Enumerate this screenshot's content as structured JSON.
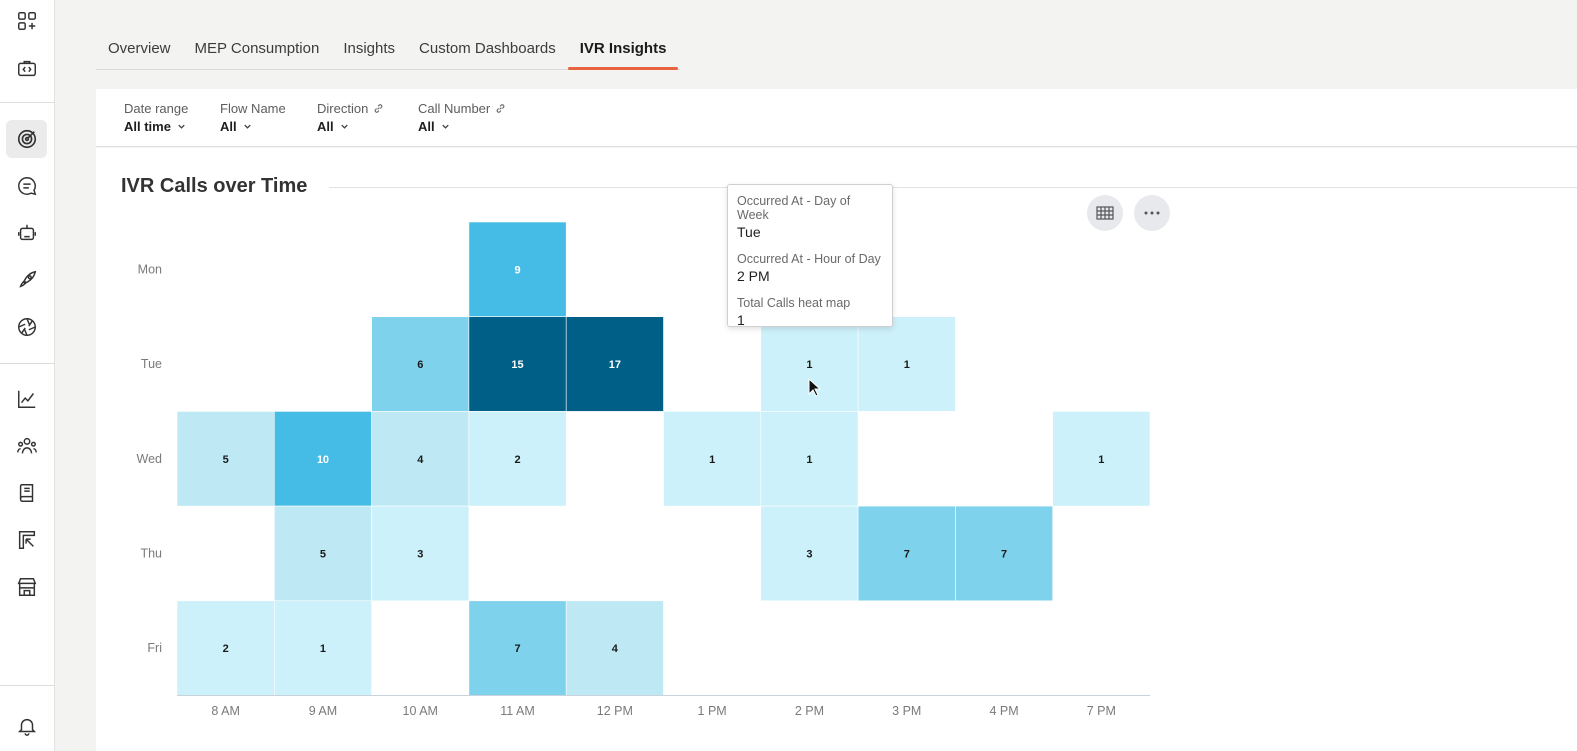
{
  "tabs": [
    {
      "label": "Overview"
    },
    {
      "label": "MEP Consumption"
    },
    {
      "label": "Insights"
    },
    {
      "label": "Custom Dashboards"
    },
    {
      "label": "IVR Insights",
      "active": true
    }
  ],
  "filters": [
    {
      "label": "Date range",
      "value": "All time",
      "linked": false
    },
    {
      "label": "Flow Name",
      "value": "All",
      "linked": false
    },
    {
      "label": "Direction",
      "value": "All",
      "linked": true
    },
    {
      "label": "Call Number",
      "value": "All",
      "linked": true
    }
  ],
  "rail_icons": [
    "grid-plus-icon",
    "code-briefcase-icon",
    "target-icon",
    "chat-bubble-icon",
    "robot-icon",
    "rocket-icon",
    "aperture-icon",
    "line-chart-icon",
    "team-icon",
    "book-icon",
    "report-icon",
    "store-icon",
    "bell-icon"
  ],
  "tooltip": {
    "label1": "Occurred At - Day of Week",
    "value1": "Tue",
    "label2": "Occurred At - Hour of Day",
    "value2": "2 PM",
    "label3": "Total Calls heat map",
    "value3": "1"
  },
  "colors": {
    "accent": "#e8633f",
    "scale": [
      "#cdf1fa",
      "#bde8f4",
      "#7fd2ec",
      "#45bce5",
      "#005f87"
    ]
  },
  "chart_data": {
    "type": "heatmap",
    "title": "IVR Calls over Time",
    "x_categories": [
      "8 AM",
      "9 AM",
      "10 AM",
      "11 AM",
      "12 PM",
      "1 PM",
      "2 PM",
      "3 PM",
      "4 PM",
      "7 PM"
    ],
    "y_categories": [
      "Mon",
      "Tue",
      "Wed",
      "Thu",
      "Fri"
    ],
    "cells": [
      {
        "day": "Mon",
        "hour": "11 AM",
        "value": 9
      },
      {
        "day": "Tue",
        "hour": "10 AM",
        "value": 6
      },
      {
        "day": "Tue",
        "hour": "11 AM",
        "value": 15
      },
      {
        "day": "Tue",
        "hour": "12 PM",
        "value": 17
      },
      {
        "day": "Tue",
        "hour": "2 PM",
        "value": 1
      },
      {
        "day": "Tue",
        "hour": "3 PM",
        "value": 1
      },
      {
        "day": "Wed",
        "hour": "8 AM",
        "value": 5
      },
      {
        "day": "Wed",
        "hour": "9 AM",
        "value": 10
      },
      {
        "day": "Wed",
        "hour": "10 AM",
        "value": 4
      },
      {
        "day": "Wed",
        "hour": "11 AM",
        "value": 2
      },
      {
        "day": "Wed",
        "hour": "1 PM",
        "value": 1
      },
      {
        "day": "Wed",
        "hour": "2 PM",
        "value": 1
      },
      {
        "day": "Wed",
        "hour": "7 PM",
        "value": 1
      },
      {
        "day": "Thu",
        "hour": "9 AM",
        "value": 5
      },
      {
        "day": "Thu",
        "hour": "10 AM",
        "value": 3
      },
      {
        "day": "Thu",
        "hour": "2 PM",
        "value": 3
      },
      {
        "day": "Thu",
        "hour": "3 PM",
        "value": 7
      },
      {
        "day": "Thu",
        "hour": "4 PM",
        "value": 7
      },
      {
        "day": "Fri",
        "hour": "8 AM",
        "value": 2
      },
      {
        "day": "Fri",
        "hour": "9 AM",
        "value": 1
      },
      {
        "day": "Fri",
        "hour": "11 AM",
        "value": 7
      },
      {
        "day": "Fri",
        "hour": "12 PM",
        "value": 4
      }
    ]
  }
}
